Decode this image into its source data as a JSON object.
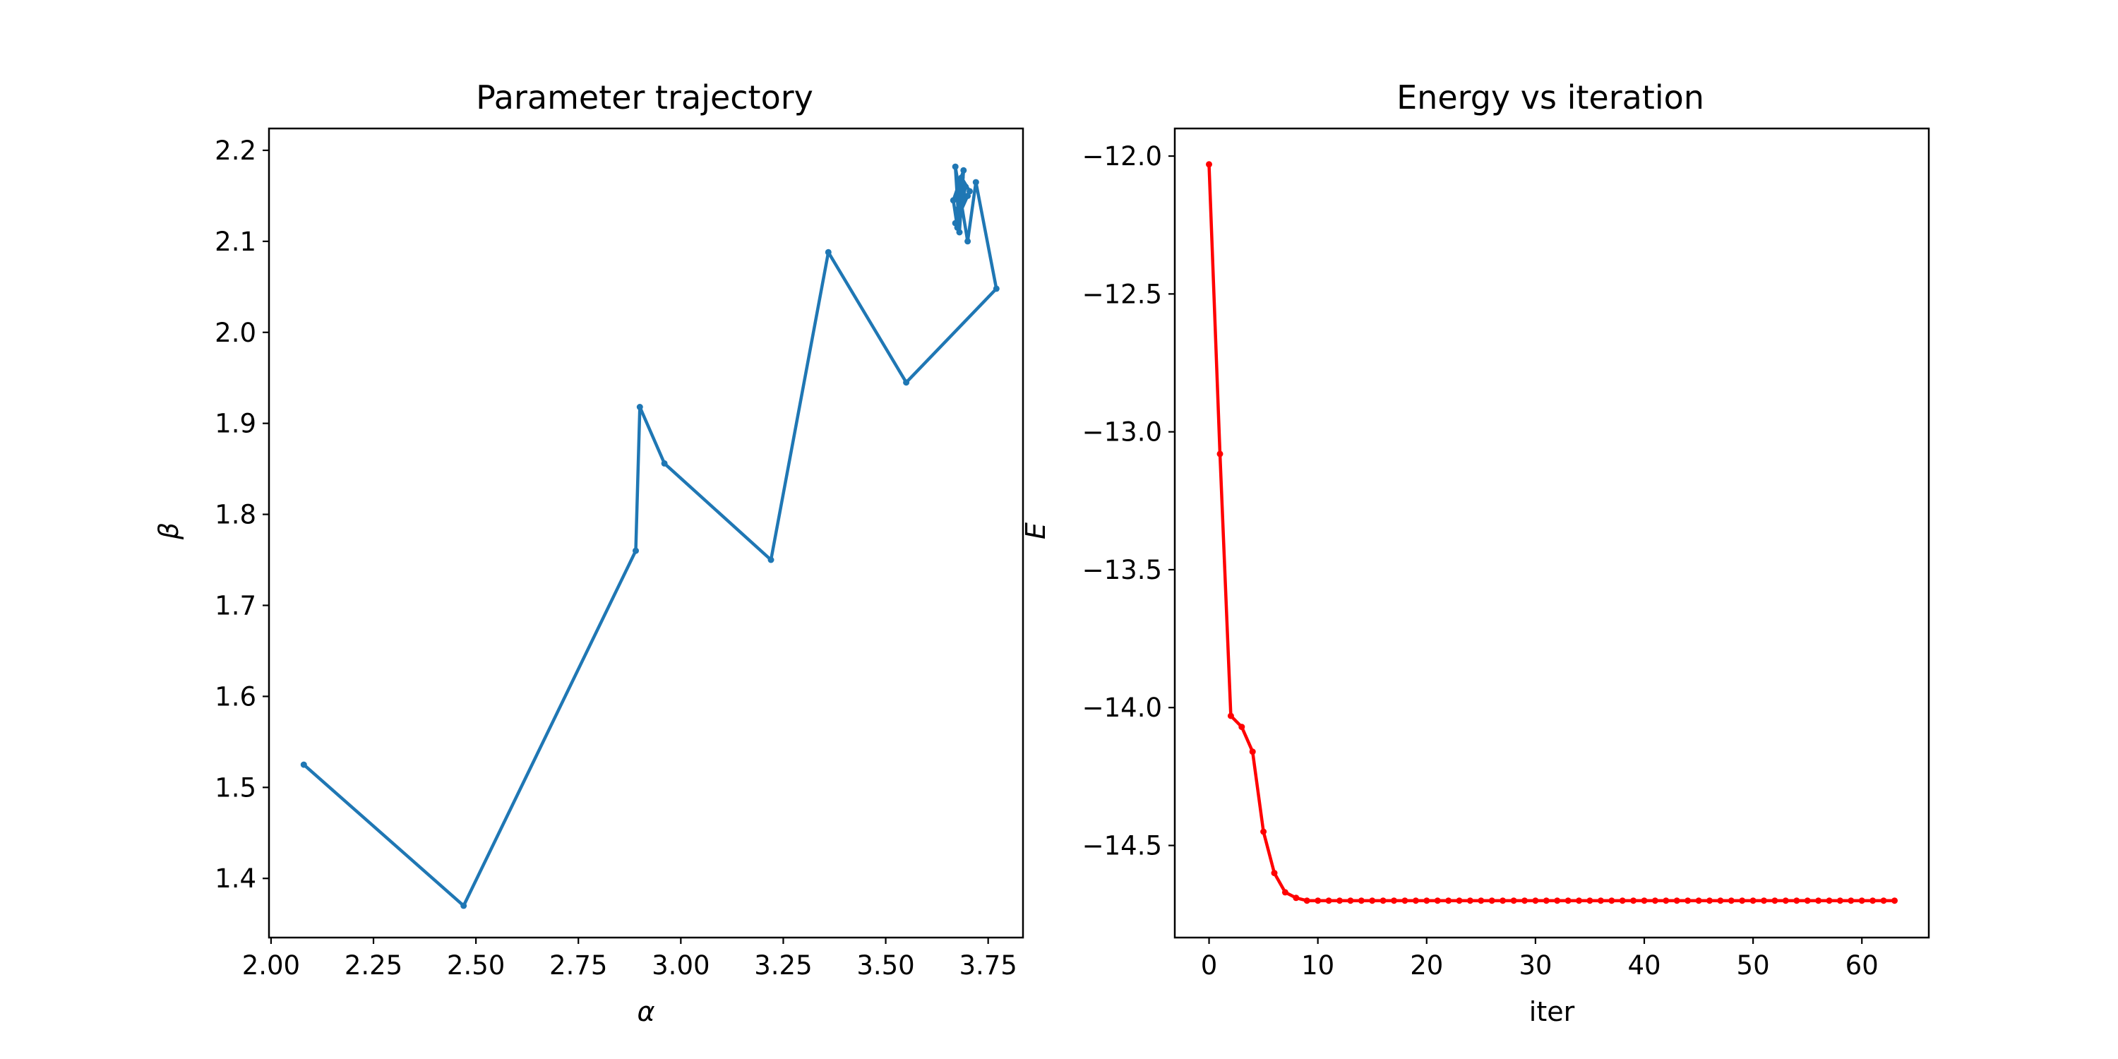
{
  "chart_data": [
    {
      "type": "line",
      "title": "Parameter trajectory",
      "xlabel": "α",
      "ylabel": "β",
      "xlim": [
        1.995,
        3.835
      ],
      "ylim": [
        1.335,
        2.224
      ],
      "xticks": [
        2.0,
        2.25,
        2.5,
        2.75,
        3.0,
        3.25,
        3.5,
        3.75
      ],
      "xtick_labels": [
        "2.00",
        "2.25",
        "2.50",
        "2.75",
        "3.00",
        "3.25",
        "3.50",
        "3.75"
      ],
      "yticks": [
        1.4,
        1.5,
        1.6,
        1.7,
        1.8,
        1.9,
        2.0,
        2.1,
        2.2
      ],
      "ytick_labels": [
        "1.4",
        "1.5",
        "1.6",
        "1.7",
        "1.8",
        "1.9",
        "2.0",
        "2.1",
        "2.2"
      ],
      "grid": false,
      "color": "#1f77b4",
      "series": [
        {
          "x": [
            2.08,
            2.47,
            2.89,
            2.9,
            2.96,
            3.22,
            3.36,
            3.55,
            3.77,
            3.72,
            3.7,
            3.67,
            3.68,
            3.69,
            3.665,
            3.675,
            3.685,
            3.705,
            3.67,
            3.695,
            3.68,
            3.7,
            3.675,
            3.69,
            3.685,
            3.685
          ],
          "y": [
            1.525,
            1.37,
            1.76,
            1.918,
            1.856,
            1.75,
            2.088,
            1.945,
            2.048,
            2.165,
            2.1,
            2.182,
            2.11,
            2.178,
            2.145,
            2.115,
            2.17,
            2.155,
            2.12,
            2.16,
            2.13,
            2.15,
            2.135,
            2.145,
            2.14,
            2.14
          ]
        }
      ]
    },
    {
      "type": "line",
      "title": "Energy vs iteration",
      "xlabel": "iter",
      "ylabel": "E",
      "xlim": [
        -3.15,
        66.15
      ],
      "ylim": [
        -14.834,
        -11.9
      ],
      "xticks": [
        0,
        10,
        20,
        30,
        40,
        50,
        60
      ],
      "xtick_labels": [
        "0",
        "10",
        "20",
        "30",
        "40",
        "50",
        "60"
      ],
      "yticks": [
        -12.0,
        -12.5,
        -13.0,
        -13.5,
        -14.0,
        -14.5
      ],
      "ytick_labels": [
        "−12.0",
        "−12.5",
        "−13.0",
        "−13.5",
        "−14.0",
        "−14.5"
      ],
      "grid": false,
      "color": "#ff0000",
      "series": [
        {
          "x": [
            0,
            1,
            2,
            3,
            4,
            5,
            6,
            7,
            8,
            9,
            10,
            11,
            12,
            13,
            14,
            15,
            16,
            17,
            18,
            19,
            20,
            21,
            22,
            23,
            24,
            25,
            26,
            27,
            28,
            29,
            30,
            31,
            32,
            33,
            34,
            35,
            36,
            37,
            38,
            39,
            40,
            41,
            42,
            43,
            44,
            45,
            46,
            47,
            48,
            49,
            50,
            51,
            52,
            53,
            54,
            55,
            56,
            57,
            58,
            59,
            60,
            61,
            62,
            63
          ],
          "y": [
            -12.03,
            -13.08,
            -14.03,
            -14.07,
            -14.16,
            -14.45,
            -14.6,
            -14.67,
            -14.69,
            -14.7,
            -14.7,
            -14.7,
            -14.7,
            -14.7,
            -14.7,
            -14.7,
            -14.7,
            -14.7,
            -14.7,
            -14.7,
            -14.7,
            -14.7,
            -14.7,
            -14.7,
            -14.7,
            -14.7,
            -14.7,
            -14.7,
            -14.7,
            -14.7,
            -14.7,
            -14.7,
            -14.7,
            -14.7,
            -14.7,
            -14.7,
            -14.7,
            -14.7,
            -14.7,
            -14.7,
            -14.7,
            -14.7,
            -14.7,
            -14.7,
            -14.7,
            -14.7,
            -14.7,
            -14.7,
            -14.7,
            -14.7,
            -14.7,
            -14.7,
            -14.7,
            -14.7,
            -14.7,
            -14.7,
            -14.7,
            -14.7,
            -14.7,
            -14.7,
            -14.7,
            -14.7,
            -14.7,
            -14.7
          ]
        }
      ]
    }
  ]
}
